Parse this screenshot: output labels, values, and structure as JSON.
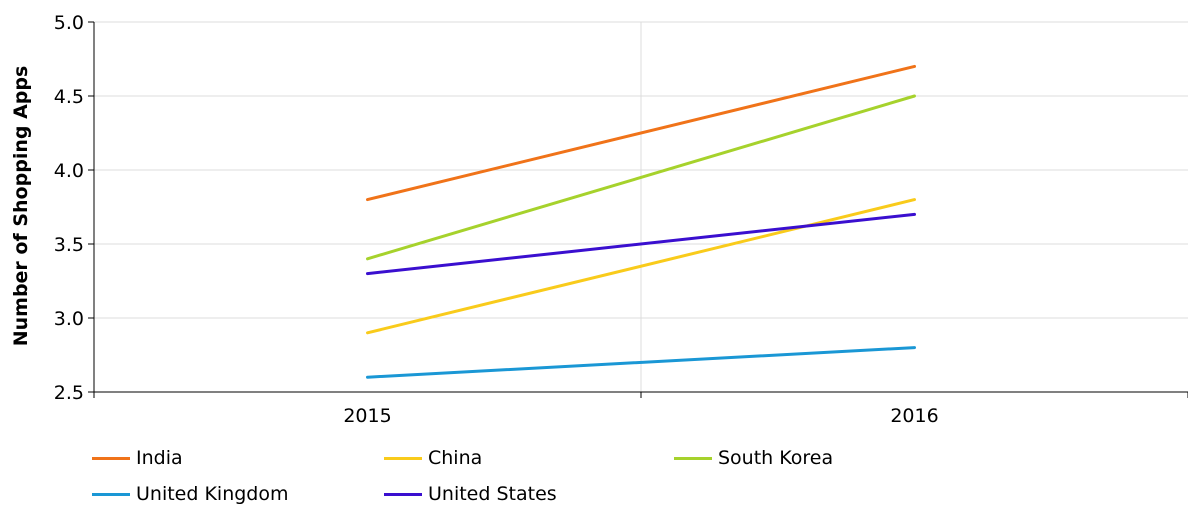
{
  "chart_data": {
    "type": "line",
    "title": "",
    "xlabel": "",
    "ylabel": "Number of Shopping Apps",
    "categories": [
      "2015",
      "2016"
    ],
    "ylim": [
      2.5,
      5.0
    ],
    "yticks": [
      "2.5",
      "3.0",
      "3.5",
      "4.0",
      "4.5",
      "5.0"
    ],
    "grid": true,
    "legend_position": "bottom",
    "series": [
      {
        "name": "India",
        "values": [
          3.8,
          4.7
        ],
        "color": "#f07319"
      },
      {
        "name": "China",
        "values": [
          2.9,
          3.8
        ],
        "color": "#f9cb1b"
      },
      {
        "name": "South Korea",
        "values": [
          3.4,
          4.5
        ],
        "color": "#a6d22c"
      },
      {
        "name": "United Kingdom",
        "values": [
          2.6,
          2.8
        ],
        "color": "#1a97d5"
      },
      {
        "name": "United States",
        "values": [
          3.3,
          3.7
        ],
        "color": "#3a0fcf"
      }
    ]
  }
}
